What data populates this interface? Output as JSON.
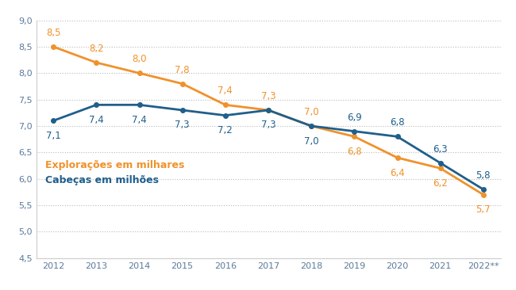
{
  "chart_data": {
    "type": "line",
    "categories": [
      "2012",
      "2013",
      "2014",
      "2015",
      "2016",
      "2017",
      "2018",
      "2019",
      "2020",
      "2021",
      "2022**"
    ],
    "series": [
      {
        "name": "Explorações em milhares",
        "color": "#f0922b",
        "marker": "o",
        "values": [
          8.5,
          8.2,
          8.0,
          7.8,
          7.4,
          7.3,
          7.0,
          6.8,
          6.4,
          6.2,
          5.7
        ],
        "value_labels": [
          "8,5",
          "8,2",
          "8,0",
          "7,8",
          "7,4",
          "7,3",
          "7,0",
          "6,8",
          "6,4",
          "6,2",
          "5,7"
        ]
      },
      {
        "name": "Cabeças em milhões",
        "color": "#1f5f8b",
        "marker": "o",
        "values": [
          7.1,
          7.4,
          7.4,
          7.3,
          7.2,
          7.3,
          7.0,
          6.9,
          6.8,
          6.3,
          5.8
        ],
        "value_labels": [
          "7,1",
          "7,4",
          "7,4",
          "7,3",
          "7,2",
          "7,3",
          "7,0",
          "6,9",
          "6,8",
          "6,3",
          "5,8"
        ]
      }
    ],
    "ylim": [
      4.5,
      9.0
    ],
    "yticks": [
      {
        "value": 4.5,
        "label": "4,5"
      },
      {
        "value": 5.0,
        "label": "5,0"
      },
      {
        "value": 5.5,
        "label": "5,5"
      },
      {
        "value": 6.0,
        "label": "6,0"
      },
      {
        "value": 6.5,
        "label": "6,5"
      },
      {
        "value": 7.0,
        "label": "7,0"
      },
      {
        "value": 7.5,
        "label": "7,5"
      },
      {
        "value": 8.0,
        "label": "8,0"
      },
      {
        "value": 8.5,
        "label": "8,5"
      },
      {
        "value": 9.0,
        "label": "9,0"
      }
    ],
    "grid": true,
    "legend": "center left",
    "data_labels": true
  }
}
